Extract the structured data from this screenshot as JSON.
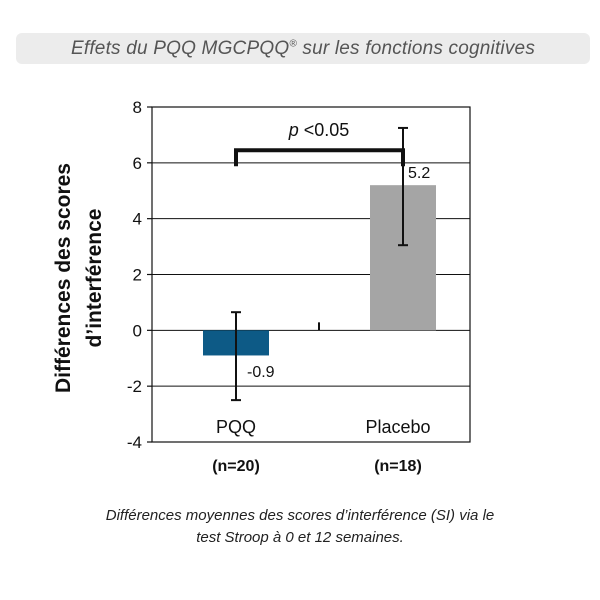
{
  "header": {
    "title_main": "Effets du PQQ MGCPQQ",
    "title_sup": "®",
    "title_rest": " sur les fonctions cognitives"
  },
  "chart_data": {
    "type": "bar",
    "categories": [
      "PQQ",
      "Placebo"
    ],
    "sample_sizes": [
      "(n=20)",
      "(n=18)"
    ],
    "values": [
      -0.9,
      5.2
    ],
    "value_labels": [
      "-0.9",
      "5.2"
    ],
    "error_bars": [
      [
        -2.5,
        0.65
      ],
      [
        3.05,
        7.25
      ]
    ],
    "bar_colors": [
      "#0d5a86",
      "#a5a5a5"
    ],
    "ylabel_line1": "Différences des scores",
    "ylabel_line2": "d’interférence",
    "ylim": [
      -4,
      8
    ],
    "yticks": [
      -4,
      -2,
      0,
      2,
      4,
      6,
      8
    ],
    "significance": {
      "prefix": "p",
      "text": " <0.05",
      "between": [
        "PQQ",
        "Placebo"
      ],
      "level": 6.45
    }
  },
  "caption": {
    "line1": "Différences moyennes des scores d’interférence (SI) via le",
    "line2": "test Stroop à 0 et 12 semaines."
  }
}
